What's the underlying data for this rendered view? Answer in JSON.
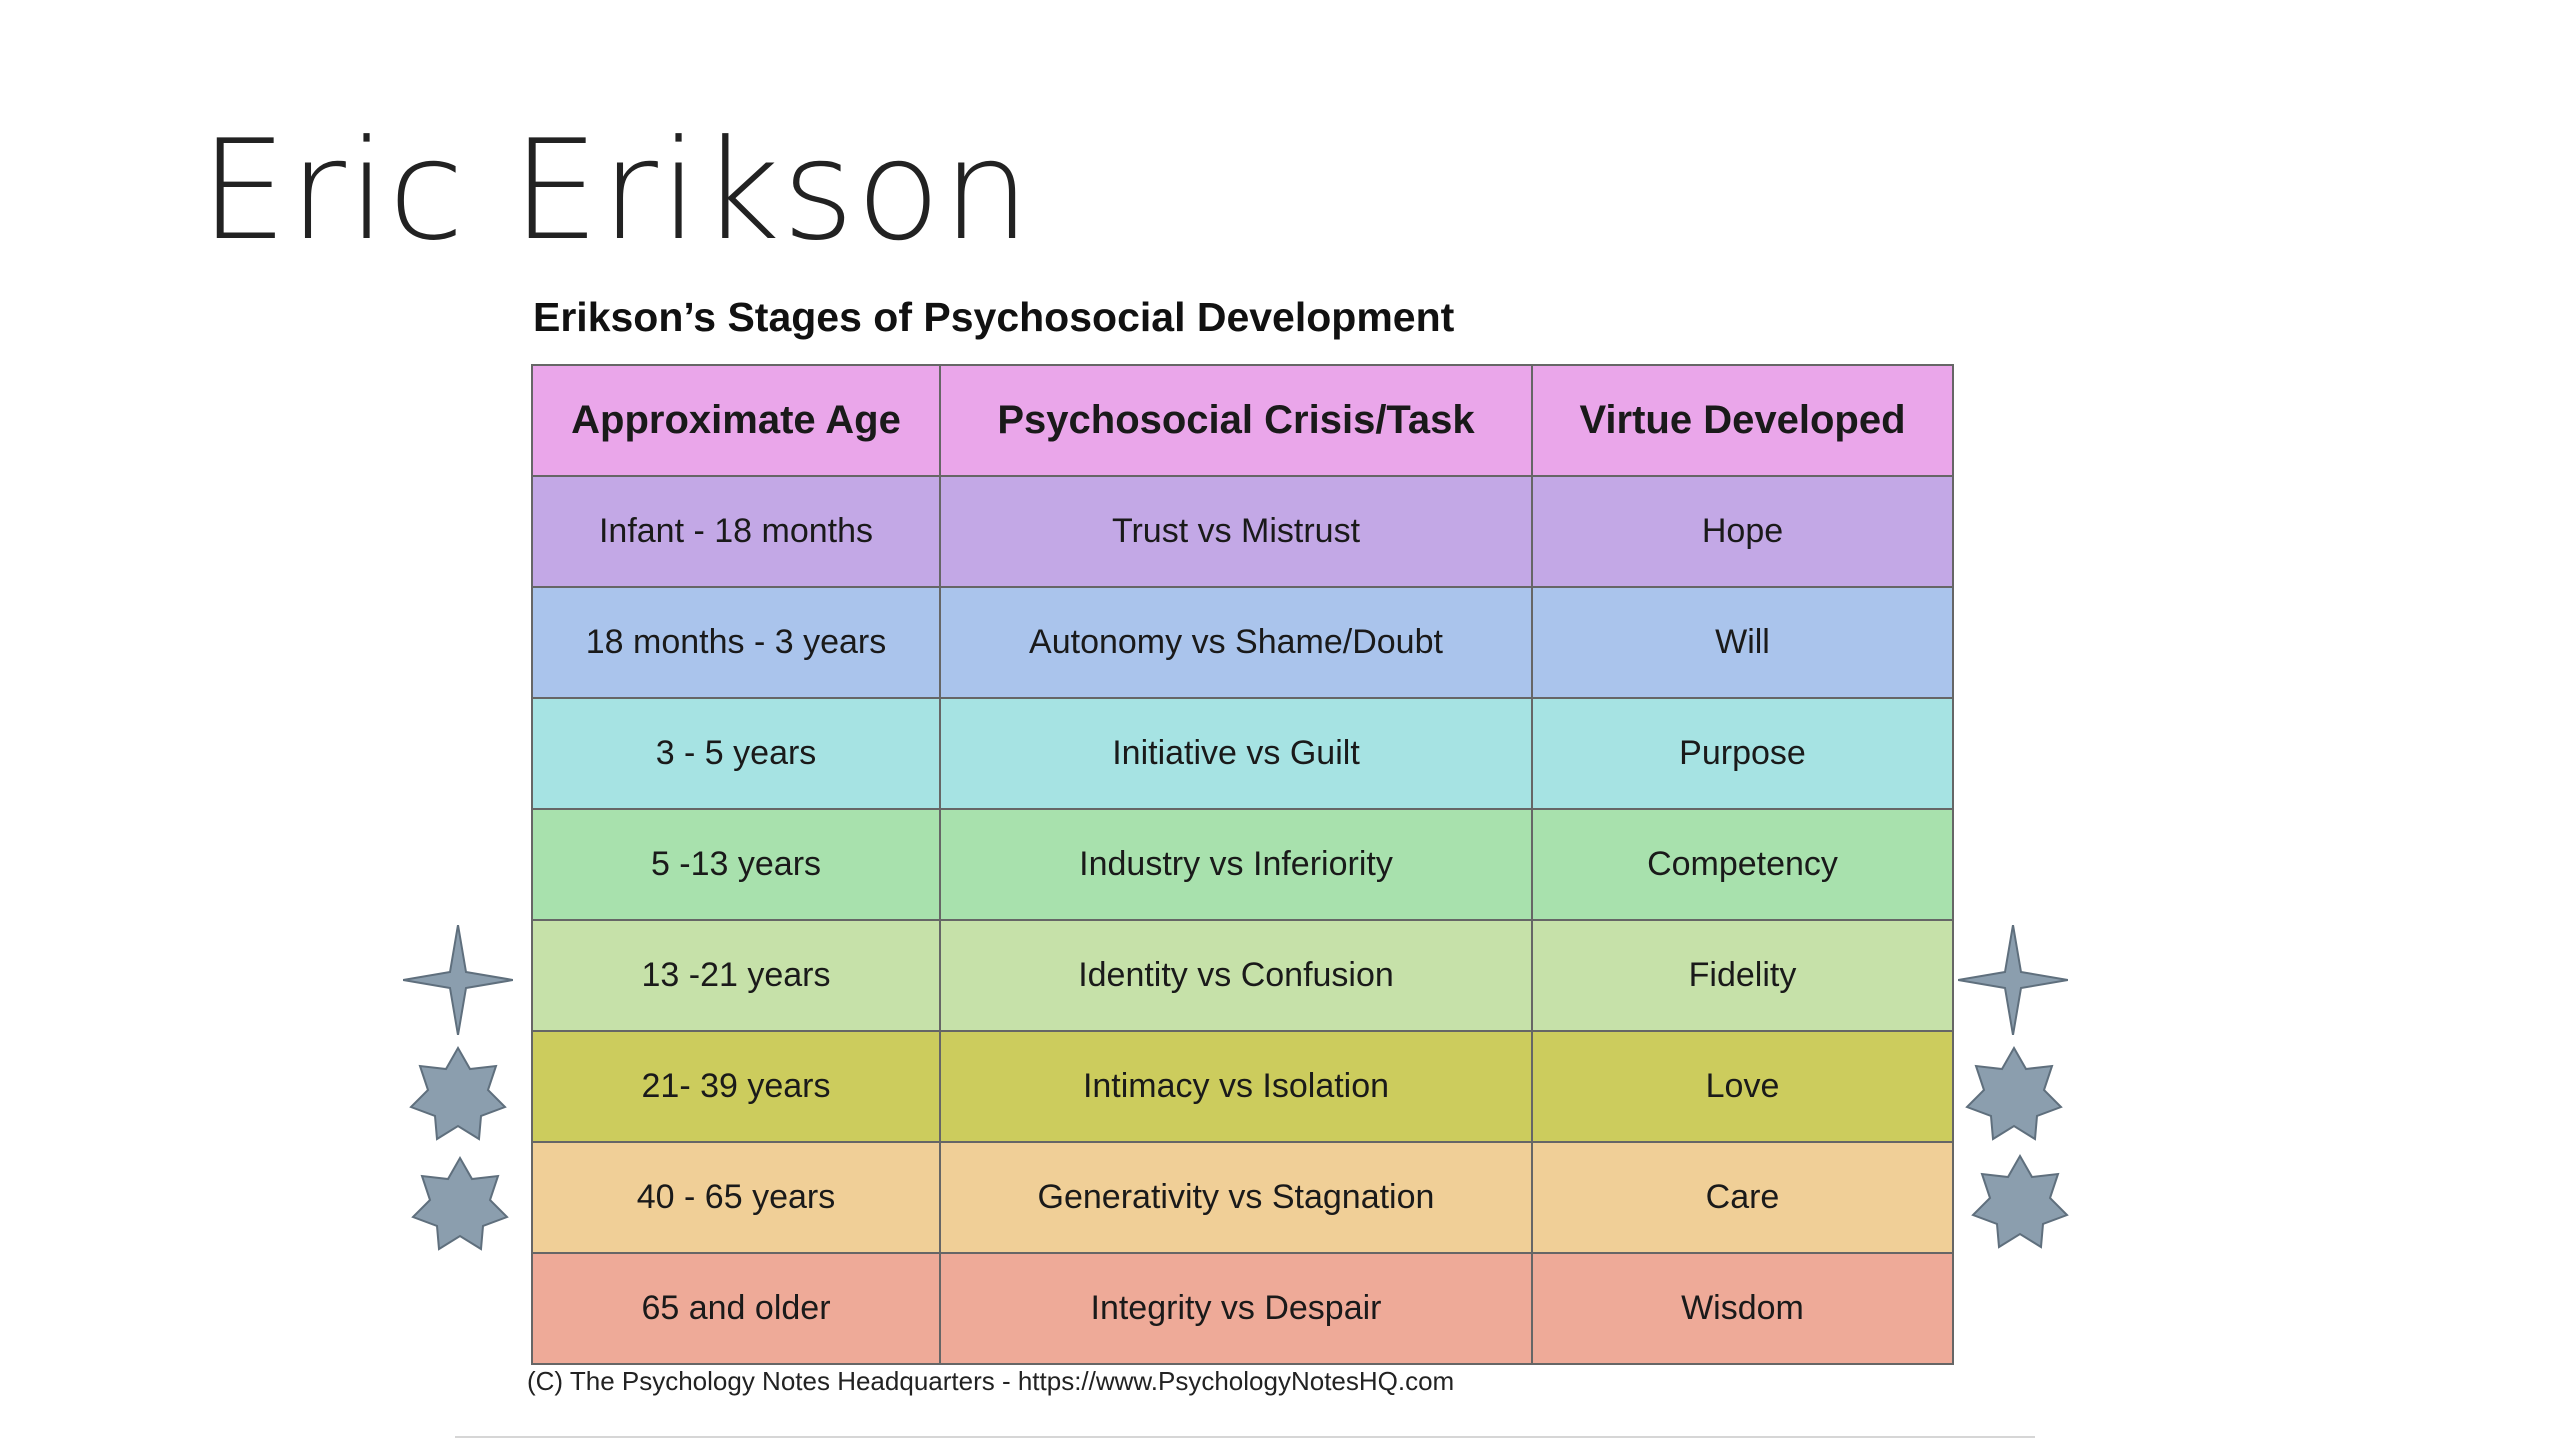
{
  "slide": {
    "title": "Eric Erikson"
  },
  "table": {
    "heading": "Erikson’s Stages of Psychosocial Development",
    "headers": [
      "Approximate Age",
      "Psychosocial Crisis/Task",
      "Virtue Developed"
    ],
    "header_color": "#eaa6ea",
    "rows": [
      {
        "age": "Infant - 18 months",
        "crisis": "Trust vs Mistrust",
        "virtue": "Hope",
        "color": "#c3a8e6"
      },
      {
        "age": "18 months - 3 years",
        "crisis": "Autonomy vs Shame/Doubt",
        "virtue": "Will",
        "color": "#aac4ec"
      },
      {
        "age": "3 - 5 years",
        "crisis": "Initiative vs Guilt",
        "virtue": "Purpose",
        "color": "#a6e3e3"
      },
      {
        "age": "5 -13 years",
        "crisis": "Industry vs Inferiority",
        "virtue": "Competency",
        "color": "#a8e1ad"
      },
      {
        "age": "13 -21 years",
        "crisis": "Identity vs Confusion",
        "virtue": "Fidelity",
        "color": "#c6e1a9"
      },
      {
        "age": "21- 39 years",
        "crisis": "Intimacy vs Isolation",
        "virtue": "Love",
        "color": "#cccc5d"
      },
      {
        "age": "40 - 65 years",
        "crisis": "Generativity vs Stagnation",
        "virtue": "Care",
        "color": "#f0cf97"
      },
      {
        "age": "65 and older",
        "crisis": "Integrity vs Despair",
        "virtue": "Wisdom",
        "color": "#eeaa98"
      }
    ],
    "citation": "(C) The Psychology Notes Headquarters - https://www.PsychologyNotesHQ.com"
  },
  "decorations": {
    "color": "#8b9eae",
    "icons": [
      "four-point-star-icon",
      "seven-point-star-icon",
      "seven-point-star-icon"
    ]
  }
}
